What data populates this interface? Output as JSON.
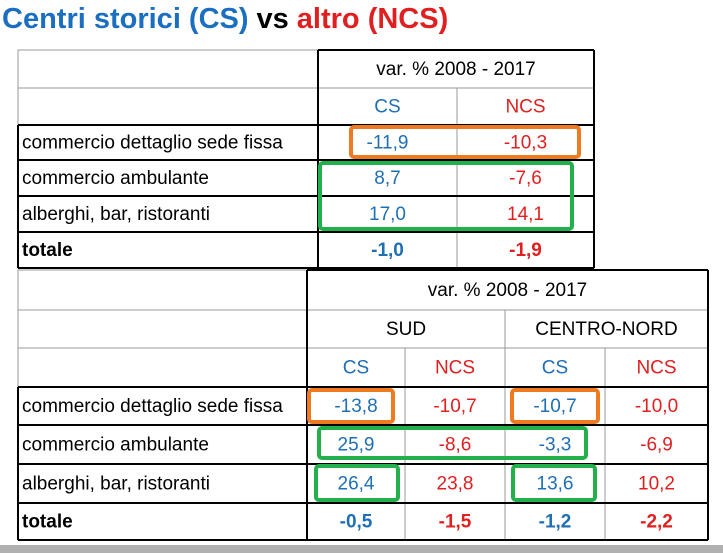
{
  "title": {
    "part1": "Centri storici (CS)",
    "part2": "vs",
    "part3": "altro (NCS)"
  },
  "table1": {
    "header": "var. % 2008 - 2017",
    "columns": [
      "CS",
      "NCS"
    ],
    "rows": [
      {
        "label": "commercio dettaglio sede fissa",
        "values": [
          "-11,9",
          "-10,3"
        ]
      },
      {
        "label": "commercio ambulante",
        "values": [
          "8,7",
          "-7,6"
        ]
      },
      {
        "label": "alberghi, bar, ristoranti",
        "values": [
          "17,0",
          "14,1"
        ]
      },
      {
        "label": "totale",
        "values": [
          "-1,0",
          "-1,9"
        ]
      }
    ]
  },
  "table2": {
    "header": "var. % 2008 - 2017",
    "groups": [
      "SUD",
      "CENTRO-NORD"
    ],
    "columns": [
      "CS",
      "NCS",
      "CS",
      "NCS"
    ],
    "rows": [
      {
        "label": "commercio dettaglio sede fissa",
        "values": [
          "-13,8",
          "-10,7",
          "-10,7",
          "-10,0"
        ]
      },
      {
        "label": "commercio ambulante",
        "values": [
          "25,9",
          "-8,6",
          "-3,3",
          "-6,9"
        ]
      },
      {
        "label": "alberghi, bar, ristoranti",
        "values": [
          "26,4",
          "23,8",
          "13,6",
          "10,2"
        ]
      },
      {
        "label": "totale",
        "values": [
          "-0,5",
          "-1,5",
          "-1,2",
          "-2,2"
        ]
      }
    ]
  }
}
